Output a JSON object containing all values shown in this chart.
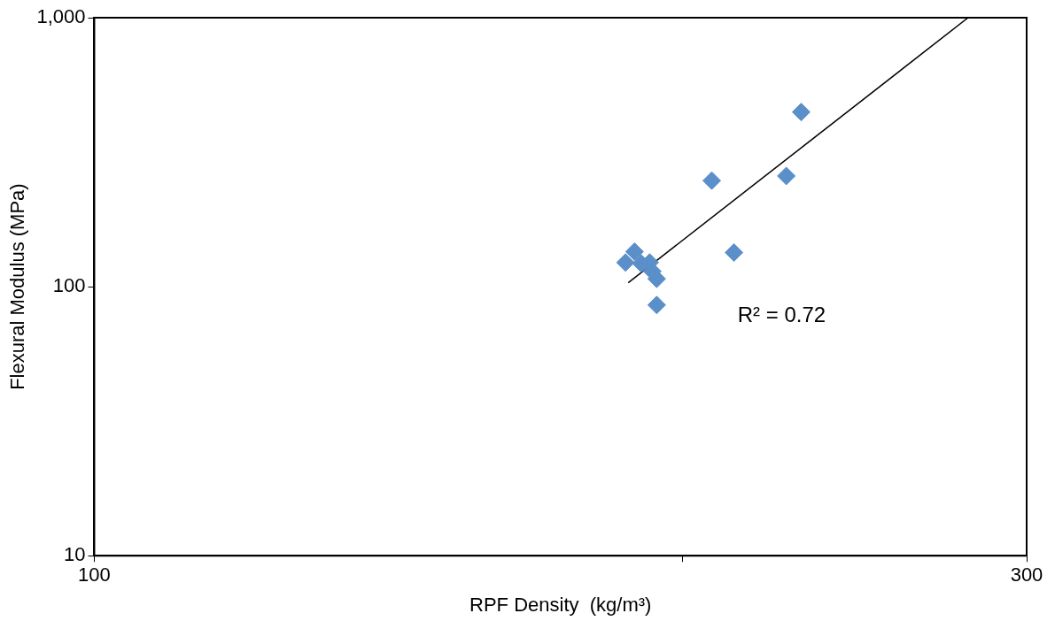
{
  "chart_data": {
    "type": "scatter",
    "xlabel": "RPF Density  (kg/m³)",
    "ylabel": "Flexural Modulus (MPa)",
    "series": [
      {
        "color": "#5b8fc9",
        "marker": "diamond",
        "x": [
          230,
          207,
          226,
          212.5,
          189,
          187,
          190.5,
          192.4,
          193,
          194,
          194
        ],
        "values": [
          446,
          248,
          258,
          134,
          135,
          123,
          122,
          123,
          114,
          107,
          85.5
        ]
      },
      {
        "type": "line",
        "color": "#000000",
        "marker": "none",
        "line_style": "solid",
        "x": [
          187.6,
          280
        ],
        "values": [
          103.5,
          1000
        ]
      }
    ],
    "xlim": [
      100,
      300
    ],
    "xticks": [
      100,
      {
        "value": 200,
        "label": null
      },
      300
    ],
    "ylim": [
      10,
      1000
    ],
    "yticks": [
      10,
      100,
      {
        "value": 1000,
        "label": "1,000"
      }
    ],
    "log": "xy",
    "grid": false,
    "legend": false,
    "annotations": [
      "R² = 0.72"
    ]
  }
}
